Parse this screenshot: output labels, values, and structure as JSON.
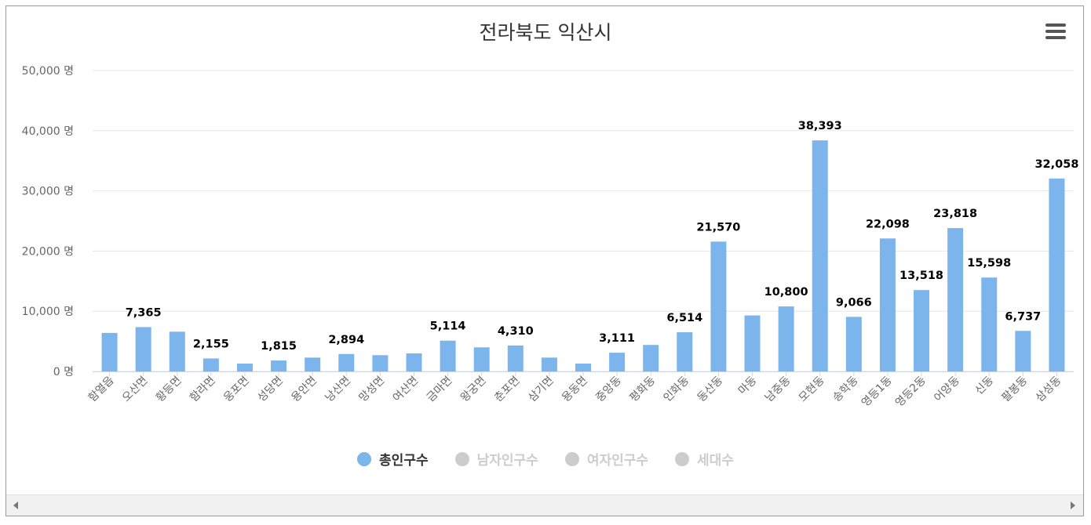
{
  "chart_data": {
    "type": "bar",
    "title": "전라북도 익산시",
    "ylim": [
      0,
      50000
    ],
    "y_ticks": [
      {
        "value": 0,
        "label": "0 명"
      },
      {
        "value": 10000,
        "label": "10,000 명"
      },
      {
        "value": 20000,
        "label": "20,000 명"
      },
      {
        "value": 30000,
        "label": "30,000 명"
      },
      {
        "value": 40000,
        "label": "40,000 명"
      },
      {
        "value": 50000,
        "label": "50,000 명"
      }
    ],
    "categories": [
      "함열읍",
      "오산면",
      "황등면",
      "함라면",
      "웅포면",
      "성당면",
      "용안면",
      "낭산면",
      "망성면",
      "여산면",
      "금마면",
      "왕궁면",
      "춘포면",
      "삼기면",
      "용동면",
      "중앙동",
      "평화동",
      "인화동",
      "동산동",
      "마동",
      "남중동",
      "모현동",
      "송학동",
      "영등1동",
      "영등2동",
      "어양동",
      "신동",
      "팔봉동",
      "삼성동"
    ],
    "series": [
      {
        "name": "총인구수",
        "color": "#7cb5ec",
        "values": [
          6400,
          7365,
          6600,
          2155,
          1300,
          1815,
          2300,
          2894,
          2700,
          3000,
          5114,
          4000,
          4310,
          2300,
          1300,
          3111,
          4400,
          6514,
          21570,
          9300,
          10800,
          38393,
          9066,
          22098,
          13518,
          23818,
          15598,
          6737,
          32058
        ],
        "data_labels": [
          "",
          "7,365",
          "",
          "2,155",
          "",
          "1,815",
          "",
          "2,894",
          "",
          "",
          "5,114",
          "",
          "4,310",
          "",
          "",
          "3,111",
          "",
          "6,514",
          "21,570",
          "",
          "10,800",
          "38,393",
          "9,066",
          "22,098",
          "13,518",
          "23,818",
          "15,598",
          "6,737",
          "32,058"
        ]
      }
    ],
    "legend": [
      {
        "label": "총인구수",
        "active": true,
        "color": "#7cb5ec"
      },
      {
        "label": "남자인구수",
        "active": false,
        "color": "#cccccc"
      },
      {
        "label": "여자인구수",
        "active": false,
        "color": "#cccccc"
      },
      {
        "label": "세대수",
        "active": false,
        "color": "#cccccc"
      }
    ]
  },
  "colors": {
    "text_active": "#333333",
    "text_inactive": "#cccccc",
    "grid": "#e6e6e6",
    "axis_label": "#666666"
  }
}
